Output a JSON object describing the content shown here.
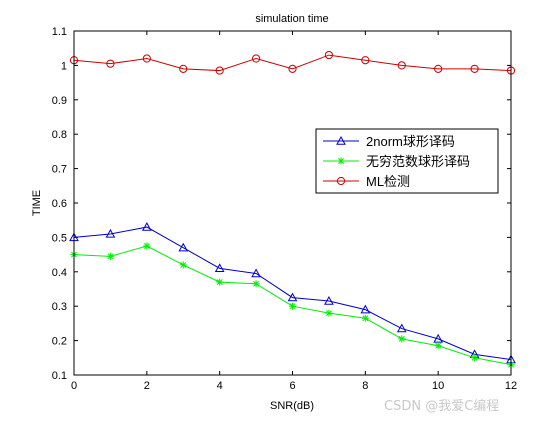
{
  "chart_data": {
    "type": "line",
    "title": "simulation time",
    "xlabel": "SNR(dB)",
    "ylabel": "TIME",
    "xlim": [
      0,
      12
    ],
    "ylim": [
      0.1,
      1.1
    ],
    "xticks": [
      "0",
      "2",
      "4",
      "6",
      "8",
      "10",
      "12"
    ],
    "yticks": [
      "0.1",
      "0.2",
      "0.3",
      "0.4",
      "0.5",
      "0.6",
      "0.7",
      "0.8",
      "0.9",
      "1",
      "1.1"
    ],
    "grid": false,
    "legend_position": "right",
    "x": [
      0,
      1,
      2,
      3,
      4,
      5,
      6,
      7,
      8,
      9,
      10,
      11,
      12
    ],
    "series": [
      {
        "name": "2norm球形译码",
        "color": "#0000cc",
        "marker": "triangle",
        "values": [
          0.5,
          0.51,
          0.53,
          0.47,
          0.41,
          0.395,
          0.325,
          0.315,
          0.29,
          0.235,
          0.205,
          0.16,
          0.145
        ]
      },
      {
        "name": "无穷范数球形译码",
        "color": "#00ee00",
        "marker": "star",
        "values": [
          0.45,
          0.445,
          0.475,
          0.42,
          0.37,
          0.365,
          0.3,
          0.28,
          0.265,
          0.205,
          0.185,
          0.15,
          0.13
        ]
      },
      {
        "name": "ML检测",
        "color": "#cc0000",
        "marker": "circle",
        "values": [
          1.015,
          1.005,
          1.02,
          0.99,
          0.985,
          1.02,
          0.99,
          1.03,
          1.015,
          1.0,
          0.99,
          0.99,
          0.985
        ]
      }
    ]
  },
  "watermark": "CSDN @我爱C编程"
}
